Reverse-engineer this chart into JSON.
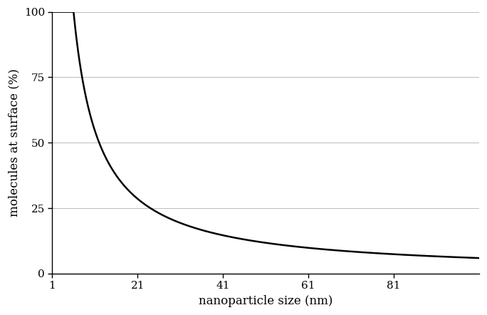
{
  "title": "",
  "xlabel": "nanoparticle size (nm)",
  "ylabel": "molecules at surface (%)",
  "x_start": 1,
  "x_end": 101,
  "yticks": [
    0,
    25,
    50,
    75,
    100
  ],
  "xticks": [
    1,
    21,
    41,
    61,
    81
  ],
  "xlim": [
    1,
    101
  ],
  "ylim": [
    0,
    100
  ],
  "line_color": "#000000",
  "line_width": 1.8,
  "background_color": "#ffffff",
  "grid_color": "#bbbbbb",
  "grid_linewidth": 0.7,
  "formula_numerator": 6.0,
  "formula_power": 1.0,
  "xlabel_fontsize": 12,
  "ylabel_fontsize": 12,
  "tick_fontsize": 11
}
